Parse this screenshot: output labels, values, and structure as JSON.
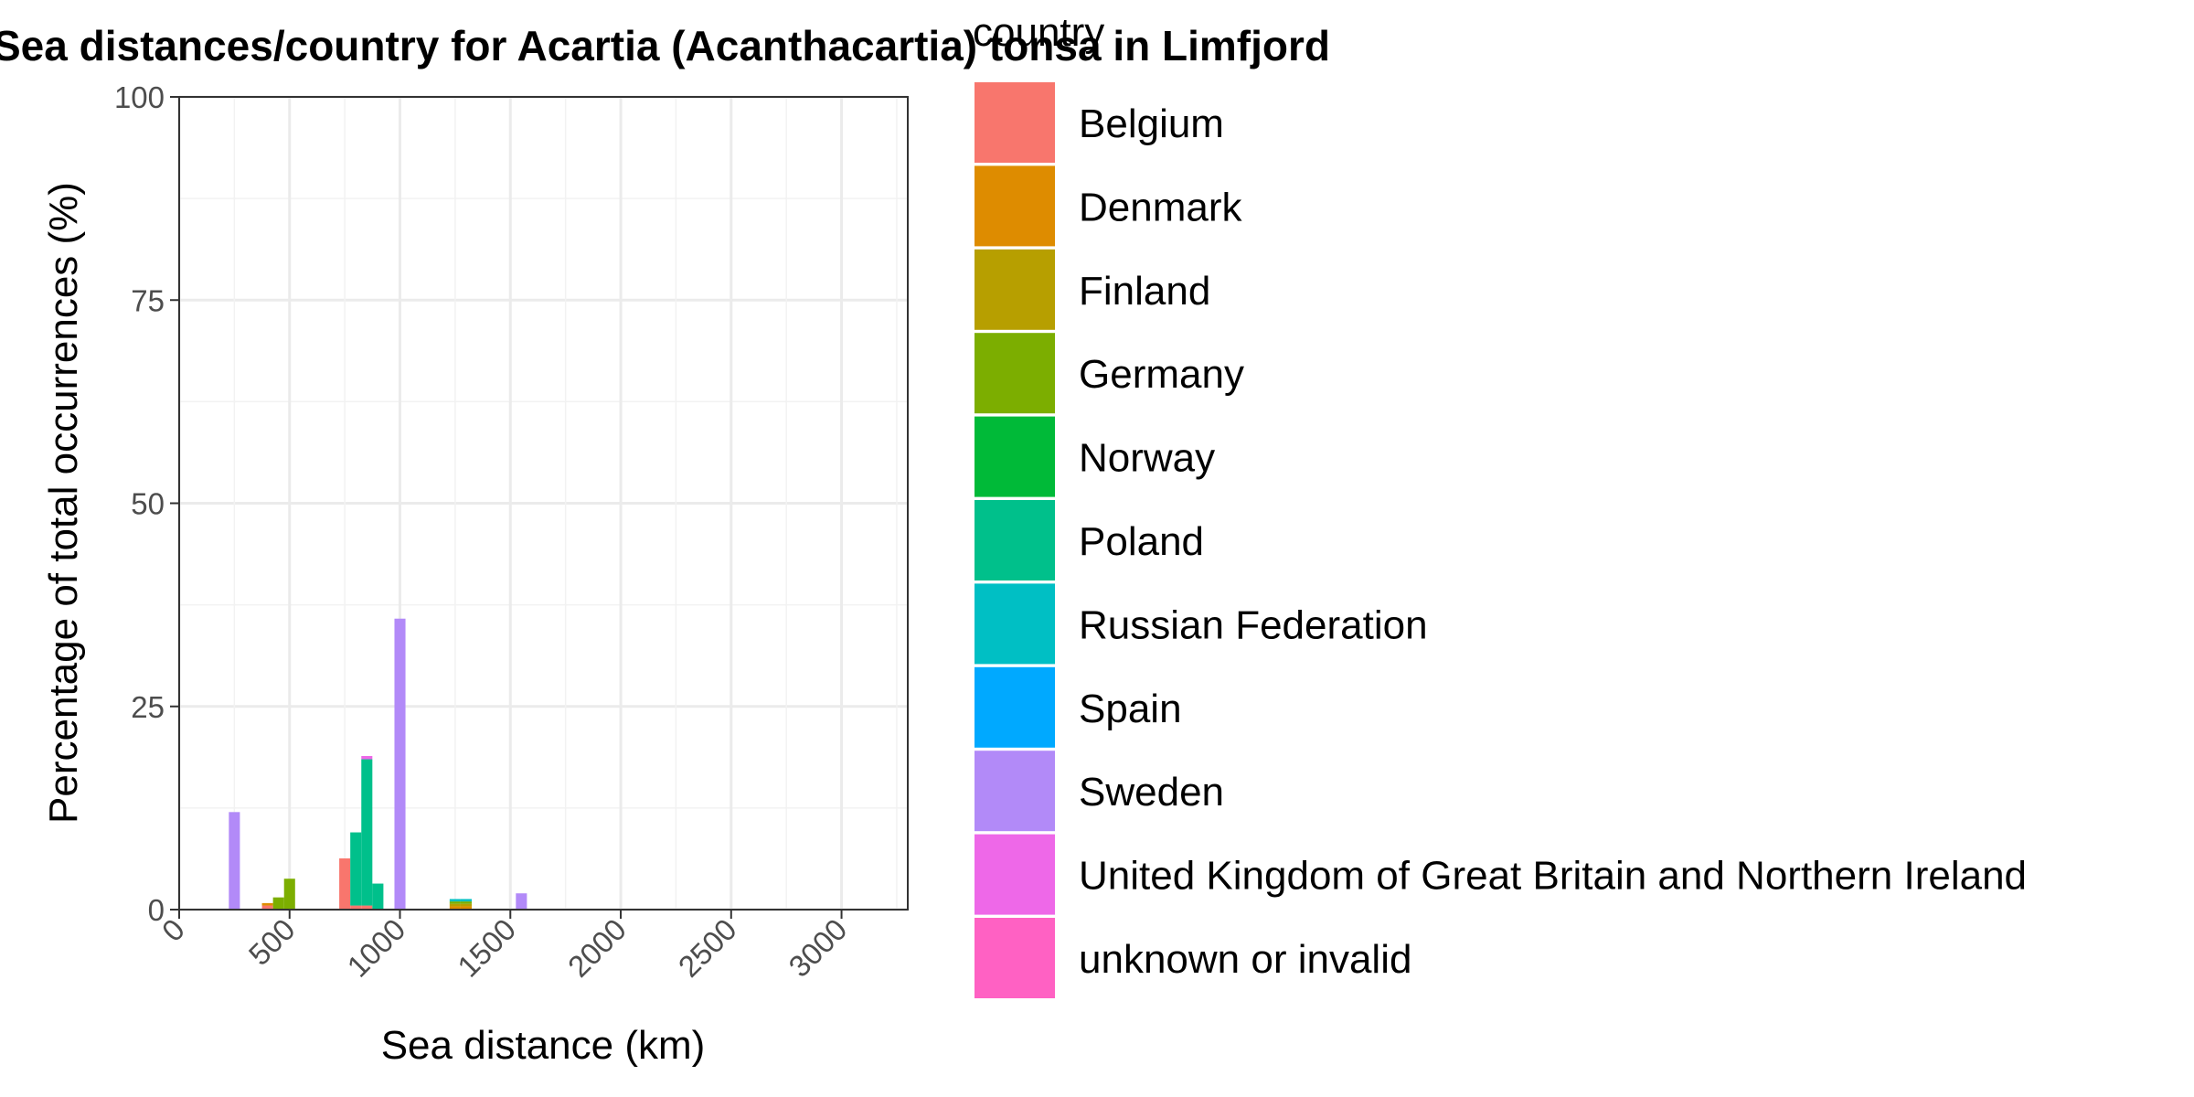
{
  "chart_data": {
    "type": "bar",
    "title": "Sea distances/country for Acartia (Acanthacartia) tonsa in Limfjord",
    "xlabel": "Sea distance (km)",
    "ylabel": "Percentage of total occurrences (%)",
    "xlim": [
      0,
      3300
    ],
    "ylim": [
      0,
      100
    ],
    "x_ticks": [
      "0",
      "500",
      "1000",
      "1500",
      "2000",
      "2500",
      "3000"
    ],
    "y_ticks": [
      "0",
      "25",
      "50",
      "75",
      "100"
    ],
    "bin_width": 50,
    "stacked": true,
    "grid": true,
    "legend_title": "country",
    "legend_position": "right",
    "series": [
      {
        "name": "Belgium",
        "color": "#F8766D",
        "points": [
          [
            400,
            0.5
          ],
          [
            750,
            6.3
          ],
          [
            800,
            0.5
          ],
          [
            850,
            0.5
          ]
        ]
      },
      {
        "name": "Denmark",
        "color": "#DE8C00",
        "points": [
          [
            400,
            0.3
          ],
          [
            1250,
            0.4
          ],
          [
            1300,
            0.4
          ]
        ]
      },
      {
        "name": "Finland",
        "color": "#B79F00",
        "points": [
          [
            1250,
            0.3
          ],
          [
            1300,
            0.3
          ]
        ]
      },
      {
        "name": "Germany",
        "color": "#7CAE00",
        "points": [
          [
            450,
            1.5
          ],
          [
            500,
            3.8
          ],
          [
            1250,
            0.3
          ],
          [
            1300,
            0.3
          ]
        ]
      },
      {
        "name": "Norway",
        "color": "#00BA38",
        "points": []
      },
      {
        "name": "Poland",
        "color": "#00C08B",
        "points": [
          [
            800,
            9.0
          ],
          [
            850,
            18.0
          ],
          [
            900,
            3.2
          ]
        ]
      },
      {
        "name": "Russian Federation",
        "color": "#00BFC4",
        "points": [
          [
            1250,
            0.3
          ],
          [
            1300,
            0.3
          ]
        ]
      },
      {
        "name": "Spain",
        "color": "#00A9FF",
        "points": []
      },
      {
        "name": "Sweden",
        "color": "#B28AF8",
        "points": [
          [
            250,
            12.0
          ],
          [
            1000,
            35.8
          ],
          [
            1550,
            2.0
          ]
        ]
      },
      {
        "name": "United Kingdom of Great Britain and Northern Ireland",
        "color": "#EE68E8",
        "points": [
          [
            850,
            0.4
          ]
        ]
      },
      {
        "name": "unknown or invalid",
        "color": "#FF61C3",
        "points": []
      }
    ]
  }
}
